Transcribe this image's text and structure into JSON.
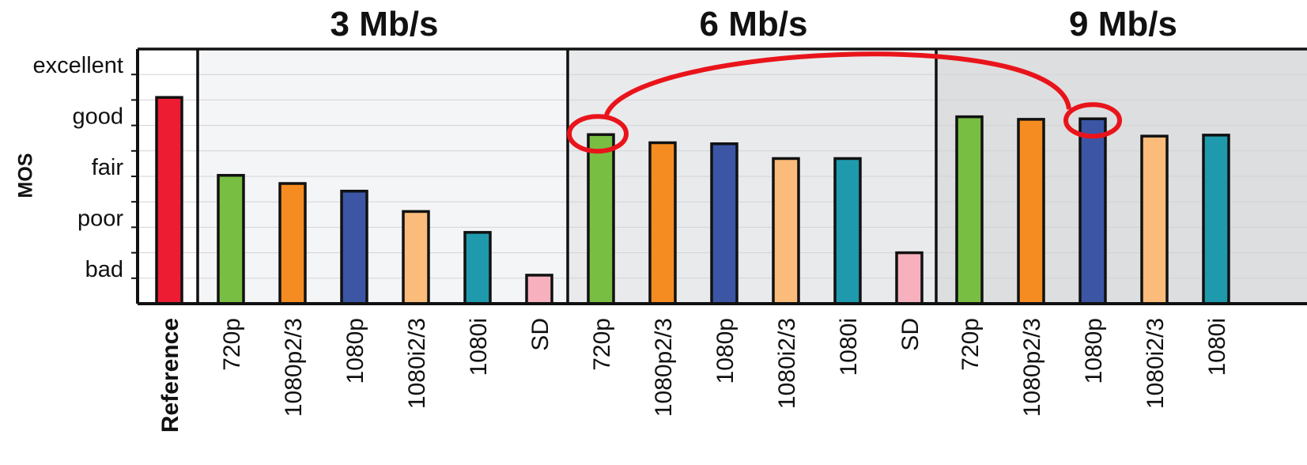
{
  "chart_data": {
    "type": "bar",
    "ylabel": "MOS",
    "y_categories": [
      "bad",
      "poor",
      "fair",
      "good",
      "excellent"
    ],
    "ylim": [
      0.5,
      5.5
    ],
    "reference": {
      "label": "Reference",
      "value": 4.55,
      "color": "#ee1c32"
    },
    "format_colors": {
      "720p": "#78be43",
      "1080p2/3": "#f58c21",
      "1080p": "#3c56a5",
      "1080i2/3": "#fbbb7b",
      "1080i": "#1f9aad",
      "SD": "#f7b1be"
    },
    "groups": [
      {
        "title": "3 Mb/s",
        "background": "#f4f5f7",
        "categories": [
          "720p",
          "1080p2/3",
          "1080p",
          "1080i2/3",
          "1080i",
          "SD"
        ],
        "values": [
          3.02,
          2.86,
          2.71,
          2.31,
          1.9,
          1.06
        ]
      },
      {
        "title": "6 Mb/s",
        "background": "#e9eaec",
        "categories": [
          "720p",
          "1080p2/3",
          "1080p",
          "1080i2/3",
          "1080i",
          "SD"
        ],
        "values": [
          3.82,
          3.66,
          3.64,
          3.35,
          3.35,
          1.5
        ]
      },
      {
        "title": "9 Mb/s",
        "background": "#dddedf",
        "categories": [
          "720p",
          "1080p2/3",
          "1080p",
          "1080i2/3",
          "1080i"
        ],
        "values": [
          4.17,
          4.12,
          4.13,
          3.79,
          3.81
        ]
      }
    ],
    "annotation": {
      "type": "highlight",
      "color": "#e9141b",
      "items": [
        "6 Mb/s 720p",
        "9 Mb/s 1080p"
      ]
    },
    "grid": true
  }
}
